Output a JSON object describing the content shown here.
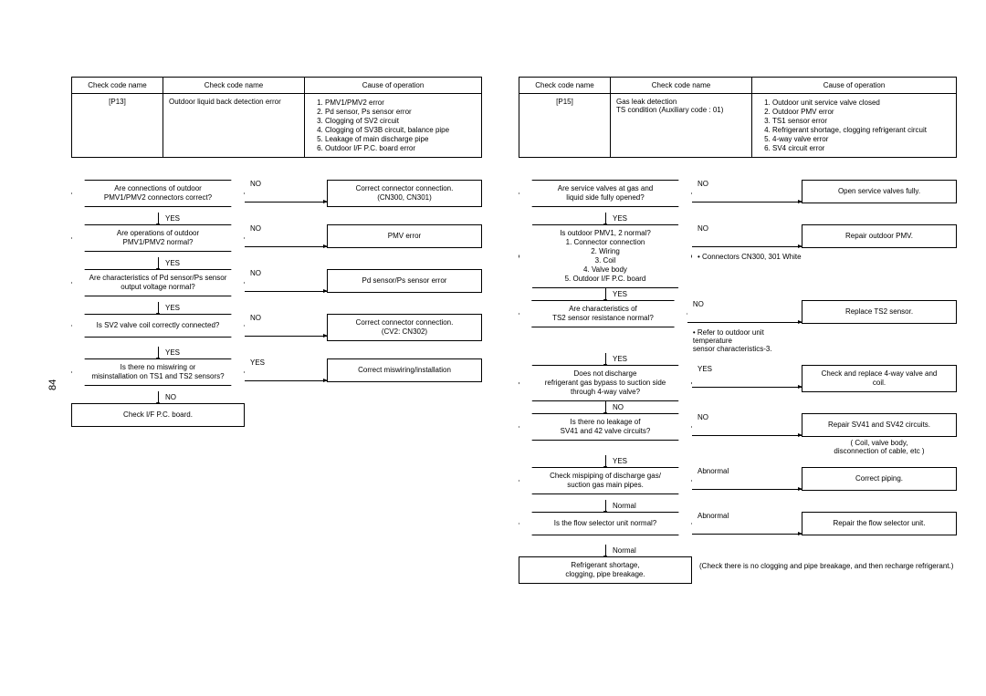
{
  "page_number": "84",
  "left": {
    "table": {
      "headers": [
        "Check code name",
        "Check code name",
        "Cause of operation"
      ],
      "code": "[P13]",
      "desc": "Outdoor liquid back detection error",
      "causes": [
        "PMV1/PMV2 error",
        "Pd sensor, Ps sensor error",
        "Clogging of SV2 circuit",
        "Clogging of SV3B circuit, balance pipe",
        "Leakage of main discharge pipe",
        "Outdoor I/F P.C. board error"
      ]
    },
    "steps": [
      {
        "q": "Are connections of outdoor\nPMV1/PMV2 connectors correct?",
        "branch": "NO",
        "vlabel": "YES",
        "a": "Correct connector connection.\n(CN300, CN301)"
      },
      {
        "q": "Are operations of outdoor\nPMV1/PMV2 normal?",
        "branch": "NO",
        "vlabel": "YES",
        "a": "PMV error"
      },
      {
        "q": "Are characteristics of Pd sensor/Ps sensor\noutput voltage normal?",
        "branch": "NO",
        "vlabel": "YES",
        "a": "Pd sensor/Ps sensor error"
      },
      {
        "q": "Is SV2 valve coil correctly connected?",
        "branch": "NO",
        "vlabel": "YES",
        "a": "Correct connector connection.\n(CV2: CN302)"
      },
      {
        "q": "Is there no miswiring or\nmisinstallation on TS1 and TS2 sensors?",
        "branch": "YES",
        "vlabel": "NO",
        "a": "Correct miswiring/installation"
      }
    ],
    "terminal": "Check I/F P.C. board."
  },
  "right": {
    "table": {
      "headers": [
        "Check code name",
        "Check code name",
        "Cause of operation"
      ],
      "code": "[P15]",
      "desc": "Gas leak detection\nTS condition (Auxiliary code : 01)",
      "causes": [
        "Outdoor unit service valve closed",
        "Outdoor PMV error",
        "TS1 sensor error",
        "Refrigerant shortage, clogging refrigerant circuit",
        "4-way valve error",
        "SV4 circuit error"
      ]
    },
    "steps": [
      {
        "q": "Are service valves at gas and\nliquid side fully opened?",
        "branch": "NO",
        "vlabel": "YES",
        "a": "Open service valves fully."
      },
      {
        "q": "Is outdoor PMV1, 2 normal?\n1. Connector connection\n2. Wiring\n3. Coil\n4. Valve body\n5. Outdoor I/F P.C. board",
        "branch": "NO",
        "vlabel": "YES",
        "a": "Repair outdoor PMV.",
        "side": "• Connectors CN300, 301 White"
      },
      {
        "q": "Are characteristics of\nTS2 sensor resistance normal?",
        "branch": "NO",
        "vlabel": "YES",
        "a": "Replace TS2 sensor.",
        "side": "• Refer to outdoor unit temperature\n  sensor characteristics-3."
      },
      {
        "q": "Does not discharge\nrefrigerant gas bypass to suction side\nthrough 4-way valve?",
        "branch": "YES",
        "vlabel": "NO",
        "a": "Check and replace 4-way  valve and coil."
      },
      {
        "q": "Is there no leakage of\nSV41 and 42 valve circuits?",
        "branch": "NO",
        "vlabel": "YES",
        "a": "Repair SV41 and SV42 circuits.",
        "note_under": "( Coil, valve body,\ndisconnection of cable, etc )"
      },
      {
        "q": "Check mispiping of discharge gas/\nsuction gas main pipes.",
        "branch": "Abnormal",
        "vlabel": "Normal",
        "a": "Correct piping."
      },
      {
        "q": "Is the flow selector unit normal?",
        "branch": "Abnormal",
        "vlabel": "Normal",
        "a": "Repair the flow selector unit."
      }
    ],
    "terminal": "Refrigerant shortage,\nclogging, pipe breakage.",
    "final_note": "(Check there is no clogging and pipe breakage, and then recharge refrigerant.)"
  }
}
